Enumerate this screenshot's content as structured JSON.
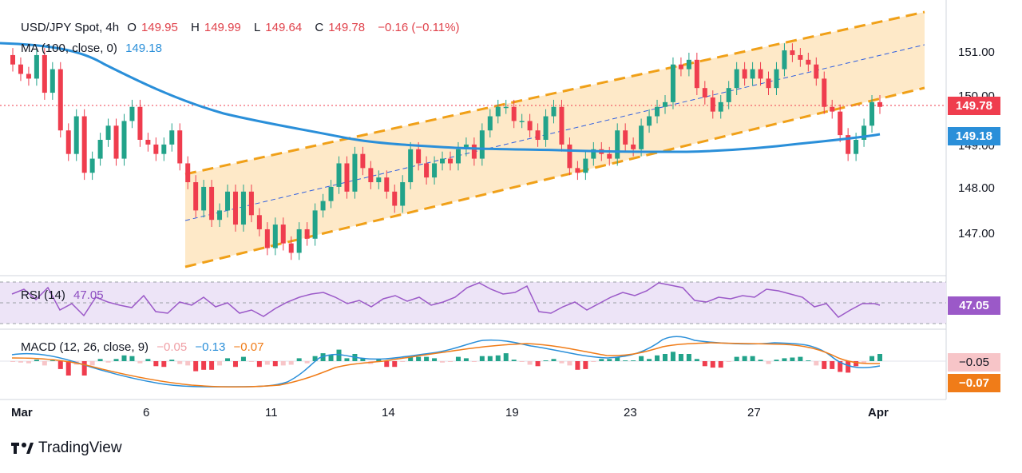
{
  "header": {
    "symbol": "USD/JPY Spot, 4h",
    "o_label": "O",
    "o": "149.95",
    "h_label": "H",
    "h": "149.99",
    "l_label": "L",
    "l": "149.64",
    "c_label": "C",
    "c": "149.78",
    "change": "−0.16 (−0.11%)"
  },
  "ma": {
    "label": "MA (100, close, 0)",
    "value": "149.18"
  },
  "rsi": {
    "label": "RSI (14)",
    "value": "47.05"
  },
  "macd": {
    "label": "MACD (12, 26, close, 9)",
    "hist": "−0.05",
    "macd": "−0.13",
    "signal": "−0.07"
  },
  "price_axis": [
    "151.00",
    "150.00",
    "149.00",
    "148.00",
    "147.00"
  ],
  "x_axis": [
    "Mar",
    "6",
    "11",
    "14",
    "19",
    "23",
    "27",
    "Apr"
  ],
  "badges": {
    "price": "149.78",
    "ma": "149.18",
    "rsi": "47.05",
    "macd_hist": "−0.05",
    "macd_signal": "−0.07"
  },
  "brand": "TradingView",
  "colors": {
    "up": "#22a38a",
    "down": "#ef3d4e",
    "ma": "#2a8fd9",
    "channel": "#f0a018",
    "rsi": "#9b59c8",
    "macd": "#2a8fd9",
    "signal": "#f07c18"
  },
  "chart_data": {
    "type": "candlestick",
    "title": "USD/JPY Spot, 4h",
    "ylim": [
      146.3,
      151.9
    ],
    "series": [
      {
        "name": "USD/JPY",
        "close": [
          150.7,
          150.5,
          150.4,
          150.9,
          150.1,
          150.6,
          149.3,
          148.8,
          149.6,
          148.4,
          148.7,
          149.1,
          149.4,
          148.7,
          149.5,
          149.8,
          149.1,
          149.0,
          148.8,
          149.0,
          149.3,
          148.6,
          148.2,
          147.6,
          148.1,
          147.4,
          147.6,
          148.0,
          147.3,
          148.0,
          147.5,
          147.2,
          146.8,
          147.3,
          146.9,
          146.7,
          147.2,
          147.0,
          147.6,
          147.8,
          148.1,
          148.6,
          148.0,
          148.8,
          148.5,
          148.2,
          148.3,
          148.0,
          147.7,
          148.2,
          148.9,
          148.6,
          148.3,
          148.6,
          148.7,
          148.6,
          148.9,
          149.0,
          148.7,
          149.3,
          149.6,
          149.8,
          149.8,
          149.5,
          149.5,
          149.3,
          149.1,
          149.6,
          149.8,
          149.0,
          148.5,
          148.4,
          148.7,
          148.9,
          148.8,
          148.7,
          149.3,
          149.0,
          148.9,
          149.4,
          149.6,
          149.8,
          149.9,
          150.7,
          150.6,
          150.8,
          150.2,
          150.0,
          149.7,
          149.9,
          150.2,
          150.6,
          150.4,
          150.6,
          150.4,
          150.2,
          150.6,
          151.0,
          150.9,
          150.8,
          150.7,
          150.4,
          149.8,
          149.7,
          149.2,
          148.8,
          149.1,
          149.4,
          149.9,
          149.8
        ]
      }
    ],
    "ma100": {
      "name": "MA (100, close, 0)",
      "last": 149.18
    },
    "channel": {
      "type": "ascending"
    },
    "rsi": {
      "last": 47.05,
      "ylim": [
        0,
        100
      ]
    },
    "macd": {
      "hist_last": -0.05,
      "macd_last": -0.13,
      "signal_last": -0.07
    },
    "x_labels": [
      "Mar",
      "6",
      "11",
      "14",
      "19",
      "23",
      "27",
      "Apr"
    ],
    "grid": false
  }
}
